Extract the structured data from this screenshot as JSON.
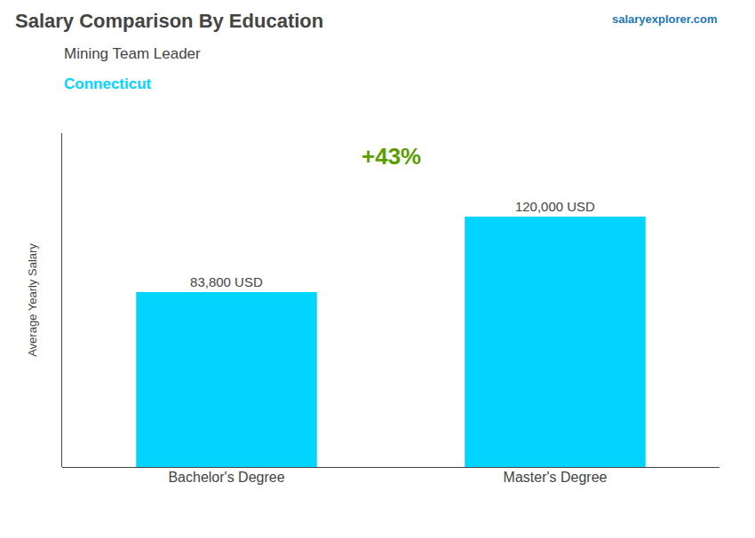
{
  "chart_data": {
    "type": "bar",
    "title": "Salary Comparison By Education",
    "subtitle": "Mining Team Leader",
    "ylabel": "Average Yearly Salary",
    "categories": [
      "Bachelor's Degree",
      "Master's Degree"
    ],
    "values": [
      83800,
      120000
    ],
    "value_labels": [
      "83,800 USD",
      "120,000 USD"
    ],
    "color": "#00d4ff",
    "ylim": [
      0,
      160000
    ],
    "tick_labels": "x",
    "data_labels": true,
    "grid": false,
    "annotations": [
      "Connecticut",
      "salaryexplorer.com",
      "+43%"
    ]
  }
}
